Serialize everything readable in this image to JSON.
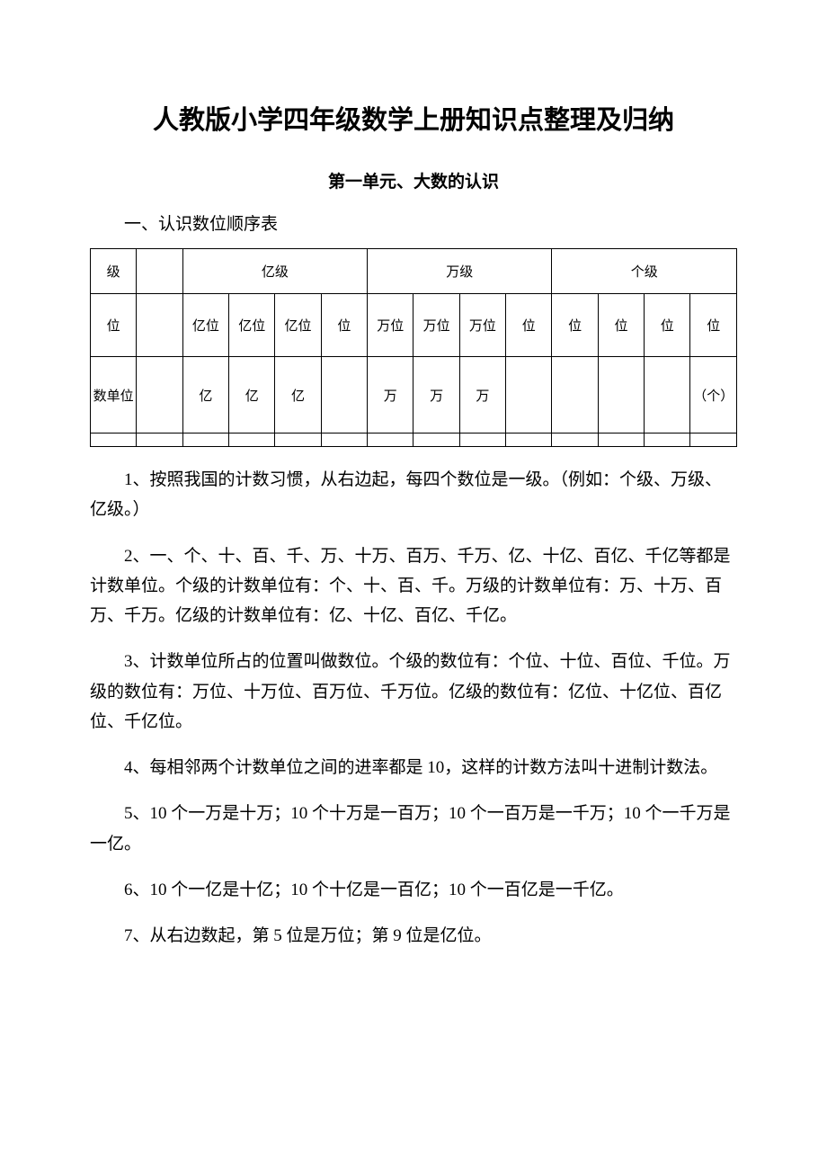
{
  "document": {
    "title": "人教版小学四年级数学上册知识点整理及归纳",
    "subtitle": "第一单元、大数的认识",
    "section_heading": "一、认识数位顺序表",
    "watermark": ""
  },
  "table": {
    "type": "table",
    "border_color": "#000000",
    "background_color": "#ffffff",
    "text_color": "#000000",
    "font_size": 15,
    "columns": 14,
    "rows": [
      {
        "header": "级",
        "cells": [
          {
            "text": "级",
            "colspan": 1
          },
          {
            "text": "",
            "colspan": 1
          },
          {
            "text": "亿级",
            "colspan": 4
          },
          {
            "text": "万级",
            "colspan": 4
          },
          {
            "text": "个级",
            "colspan": 4
          }
        ]
      },
      {
        "header": "位",
        "cells": [
          {
            "text": "位"
          },
          {
            "text": ""
          },
          {
            "text": "亿位"
          },
          {
            "text": "亿位"
          },
          {
            "text": "亿位"
          },
          {
            "text": "位"
          },
          {
            "text": "万位"
          },
          {
            "text": "万位"
          },
          {
            "text": "万位"
          },
          {
            "text": "位"
          },
          {
            "text": "位"
          },
          {
            "text": "位"
          },
          {
            "text": "位"
          },
          {
            "text": "位"
          }
        ]
      },
      {
        "header": "数单位",
        "cells": [
          {
            "text": "数单位"
          },
          {
            "text": ""
          },
          {
            "text": "亿"
          },
          {
            "text": "亿"
          },
          {
            "text": "亿"
          },
          {
            "text": ""
          },
          {
            "text": "万"
          },
          {
            "text": "万"
          },
          {
            "text": "万"
          },
          {
            "text": ""
          },
          {
            "text": ""
          },
          {
            "text": ""
          },
          {
            "text": ""
          },
          {
            "text": "（个）"
          }
        ]
      }
    ]
  },
  "paragraphs": {
    "p1": "1、按照我国的计数习惯，从右边起，每四个数位是一级。（例如：个级、万级、亿级。）",
    "p2": "2、一、个、十、百、千、万、十万、百万、千万、亿、十亿、百亿、千亿等都是计数单位。个级的计数单位有：个、十、百、千。万级的计数单位有：万、十万、百万、千万。亿级的计数单位有：亿、十亿、百亿、千亿。",
    "p3": "3、计数单位所占的位置叫做数位。个级的数位有：个位、十位、百位、千位。万级的数位有：万位、十万位、百万位、千万位。亿级的数位有：亿位、十亿位、百亿位、千亿位。",
    "p4": "4、每相邻两个计数单位之间的进率都是 10，这样的计数方法叫十进制计数法。",
    "p5": "5、10 个一万是十万；10 个十万是一百万；10 个一百万是一千万；10 个一千万是一亿。",
    "p6": "6、10 个一亿是十亿；10 个十亿是一百亿；10 个一百亿是一千亿。",
    "p7": "7、从右边数起，第 5 位是万位；第 9 位是亿位。"
  }
}
